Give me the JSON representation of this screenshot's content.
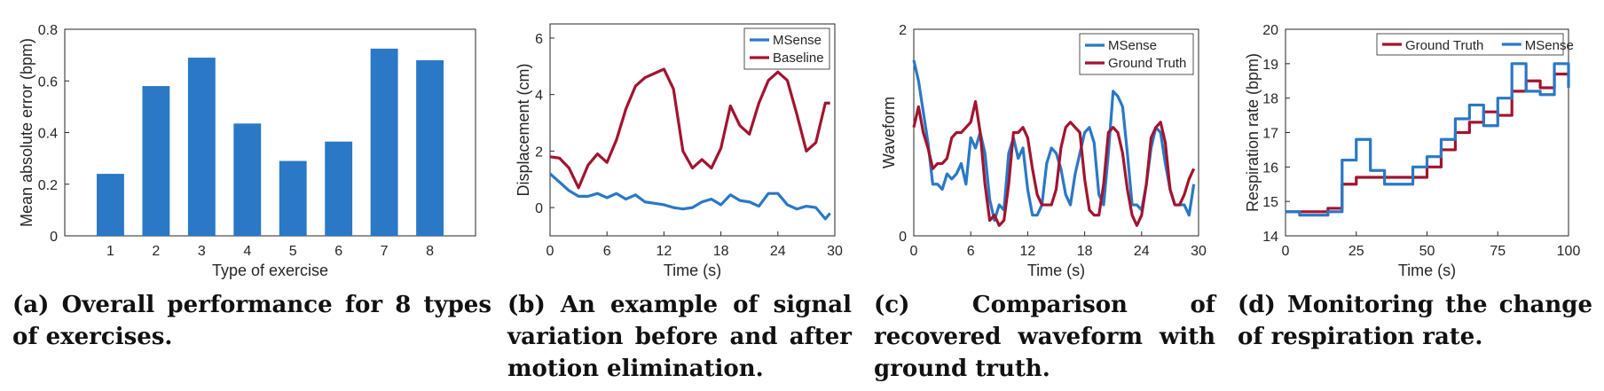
{
  "colors": {
    "blue": "#2a78c6",
    "red": "#a2142f",
    "axis": "#262626"
  },
  "captions": {
    "a": "(a) Overall performance for 8 types of exercises.",
    "b": "(b) An example of signal variation before and after motion elimination.",
    "c": "(c) Comparison of recovered waveform with ground truth.",
    "d": "(d) Monitoring the change of respiration rate."
  },
  "chart_data": [
    {
      "id": "a",
      "type": "bar",
      "xlabel": "Type of exercise",
      "ylabel": "Mean absolute error (bpm)",
      "categories": [
        "1",
        "2",
        "3",
        "4",
        "5",
        "6",
        "7",
        "8"
      ],
      "values": [
        0.24,
        0.58,
        0.69,
        0.435,
        0.29,
        0.365,
        0.725,
        0.68
      ],
      "xlim": [
        0,
        9
      ],
      "ylim": [
        0,
        0.8
      ],
      "xticks": [
        1,
        2,
        3,
        4,
        5,
        6,
        7,
        8
      ],
      "yticks": [
        0,
        0.2,
        0.4,
        0.6,
        0.8
      ],
      "ytick_labels": [
        "0",
        "0.2",
        "0.4",
        "0.6",
        "0.8"
      ]
    },
    {
      "id": "b",
      "type": "line",
      "xlabel": "Time (s)",
      "ylabel": "Displacement (cm)",
      "xlim": [
        0,
        30
      ],
      "ylim": [
        -1,
        6.5
      ],
      "xticks": [
        0,
        6,
        12,
        18,
        24,
        30
      ],
      "yticks": [
        0,
        2,
        4,
        6
      ],
      "legend": "top-right",
      "series": [
        {
          "name": "MSense",
          "color": "blue",
          "x": [
            0,
            1,
            2,
            3,
            4,
            5,
            6,
            7,
            8,
            9,
            10,
            11,
            12,
            13,
            14,
            15,
            16,
            17,
            18,
            19,
            20,
            21,
            22,
            23,
            24,
            25,
            26,
            27,
            28,
            29,
            29.5
          ],
          "y": [
            1.2,
            0.9,
            0.6,
            0.4,
            0.4,
            0.5,
            0.35,
            0.5,
            0.3,
            0.45,
            0.2,
            0.15,
            0.1,
            0.0,
            -0.05,
            0.0,
            0.2,
            0.3,
            0.1,
            0.45,
            0.25,
            0.2,
            0.05,
            0.5,
            0.5,
            0.1,
            -0.05,
            0.05,
            0.0,
            -0.4,
            -0.2
          ]
        },
        {
          "name": "Baseline",
          "color": "red",
          "x": [
            0,
            1,
            2,
            3,
            4,
            5,
            6,
            7,
            8,
            9,
            10,
            11,
            12,
            13,
            14,
            15,
            16,
            17,
            18,
            19,
            20,
            21,
            22,
            23,
            24,
            25,
            26,
            27,
            28,
            29,
            29.5
          ],
          "y": [
            1.8,
            1.75,
            1.4,
            0.7,
            1.5,
            1.9,
            1.6,
            2.4,
            3.5,
            4.3,
            4.6,
            4.75,
            4.9,
            4.2,
            2.0,
            1.4,
            1.7,
            1.4,
            2.1,
            3.6,
            2.9,
            2.6,
            3.7,
            4.5,
            4.8,
            4.5,
            3.3,
            2.0,
            2.3,
            3.7,
            3.7
          ]
        }
      ]
    },
    {
      "id": "c",
      "type": "line",
      "xlabel": "Time (s)",
      "ylabel": "Waveform",
      "xlim": [
        0,
        30
      ],
      "ylim": [
        0,
        2
      ],
      "xticks": [
        0,
        6,
        12,
        18,
        24,
        30
      ],
      "yticks": [
        0,
        2
      ],
      "legend": "top-right",
      "series": [
        {
          "name": "MSense",
          "color": "blue",
          "x": [
            0,
            0.5,
            1,
            1.5,
            2,
            2.5,
            3,
            3.5,
            4,
            4.5,
            5,
            5.5,
            6,
            6.5,
            7,
            7.5,
            8,
            8.5,
            9,
            9.5,
            10,
            10.5,
            11,
            11.5,
            12,
            12.5,
            13,
            13.5,
            14,
            14.5,
            15,
            15.5,
            16,
            16.5,
            17,
            17.5,
            18,
            18.5,
            19,
            19.5,
            20,
            20.5,
            21,
            21.5,
            22,
            22.5,
            23,
            23.5,
            24,
            24.5,
            25,
            25.5,
            26,
            26.5,
            27,
            27.5,
            28,
            28.5,
            29,
            29.5
          ],
          "y": [
            1.7,
            1.5,
            1.2,
            0.9,
            0.5,
            0.5,
            0.45,
            0.6,
            0.55,
            0.6,
            0.7,
            0.5,
            0.95,
            0.85,
            1.0,
            0.8,
            0.35,
            0.15,
            0.3,
            0.25,
            0.8,
            0.95,
            0.75,
            0.85,
            0.45,
            0.2,
            0.2,
            0.3,
            0.7,
            0.85,
            0.8,
            0.65,
            0.4,
            0.3,
            0.6,
            0.8,
            1.0,
            1.05,
            0.9,
            0.4,
            0.3,
            0.8,
            1.4,
            1.35,
            1.25,
            0.8,
            0.3,
            0.3,
            0.25,
            0.5,
            0.85,
            1.05,
            1.0,
            0.7,
            0.45,
            0.3,
            0.3,
            0.3,
            0.2,
            0.5
          ]
        },
        {
          "name": "Ground Truth",
          "color": "red",
          "x": [
            0,
            0.5,
            1,
            1.5,
            2,
            2.5,
            3,
            3.5,
            4,
            4.5,
            5,
            5.5,
            6,
            6.5,
            7,
            7.5,
            8,
            8.5,
            9,
            9.5,
            10,
            10.5,
            11,
            11.5,
            12,
            12.5,
            13,
            13.5,
            14,
            14.5,
            15,
            15.5,
            16,
            16.5,
            17,
            17.5,
            18,
            18.5,
            19,
            19.5,
            20,
            20.5,
            21,
            21.5,
            22,
            22.5,
            23,
            23.5,
            24,
            24.5,
            25,
            25.5,
            26,
            26.5,
            27,
            27.5,
            28,
            28.5,
            29,
            29.5
          ],
          "y": [
            1.05,
            1.25,
            1.0,
            0.85,
            0.65,
            0.7,
            0.7,
            0.75,
            0.95,
            1.0,
            1.0,
            1.05,
            1.1,
            1.3,
            1.0,
            0.5,
            0.15,
            0.2,
            0.1,
            0.15,
            0.5,
            1.0,
            1.0,
            1.05,
            0.95,
            0.65,
            0.4,
            0.3,
            0.3,
            0.3,
            0.45,
            0.85,
            1.05,
            1.1,
            1.05,
            1.0,
            0.55,
            0.25,
            0.2,
            0.2,
            0.5,
            1.0,
            1.05,
            1.0,
            0.8,
            0.45,
            0.2,
            0.1,
            0.2,
            0.5,
            0.95,
            1.05,
            1.1,
            0.9,
            0.45,
            0.3,
            0.3,
            0.4,
            0.55,
            0.65
          ]
        }
      ]
    },
    {
      "id": "d",
      "type": "line",
      "xlabel": "Time (s)",
      "ylabel": "Respiration rate (bpm)",
      "xlim": [
        0,
        100
      ],
      "ylim": [
        14,
        20
      ],
      "xticks": [
        0,
        25,
        50,
        75,
        100
      ],
      "yticks": [
        14,
        15,
        16,
        17,
        18,
        19,
        20
      ],
      "legend": "top-right",
      "series": [
        {
          "name": "Ground Truth",
          "color": "red",
          "x": [
            0,
            5,
            10,
            15,
            20,
            25,
            30,
            35,
            40,
            45,
            50,
            55,
            60,
            65,
            70,
            75,
            80,
            85,
            90,
            95,
            100
          ],
          "y": [
            14.7,
            14.7,
            14.7,
            14.8,
            15.5,
            15.7,
            15.7,
            15.7,
            15.7,
            15.7,
            16.0,
            16.5,
            17.0,
            17.3,
            17.6,
            17.5,
            18.2,
            18.5,
            18.3,
            18.7,
            18.7
          ]
        },
        {
          "name": "MSense",
          "color": "blue",
          "x": [
            0,
            5,
            10,
            15,
            20,
            25,
            30,
            35,
            40,
            45,
            50,
            55,
            60,
            65,
            70,
            75,
            80,
            85,
            90,
            95,
            100
          ],
          "y": [
            14.7,
            14.6,
            14.6,
            14.7,
            16.2,
            16.8,
            15.9,
            15.5,
            15.5,
            16.0,
            16.3,
            16.8,
            17.4,
            17.8,
            17.2,
            18.0,
            19.0,
            18.2,
            18.1,
            19.0,
            18.3
          ]
        }
      ]
    }
  ]
}
